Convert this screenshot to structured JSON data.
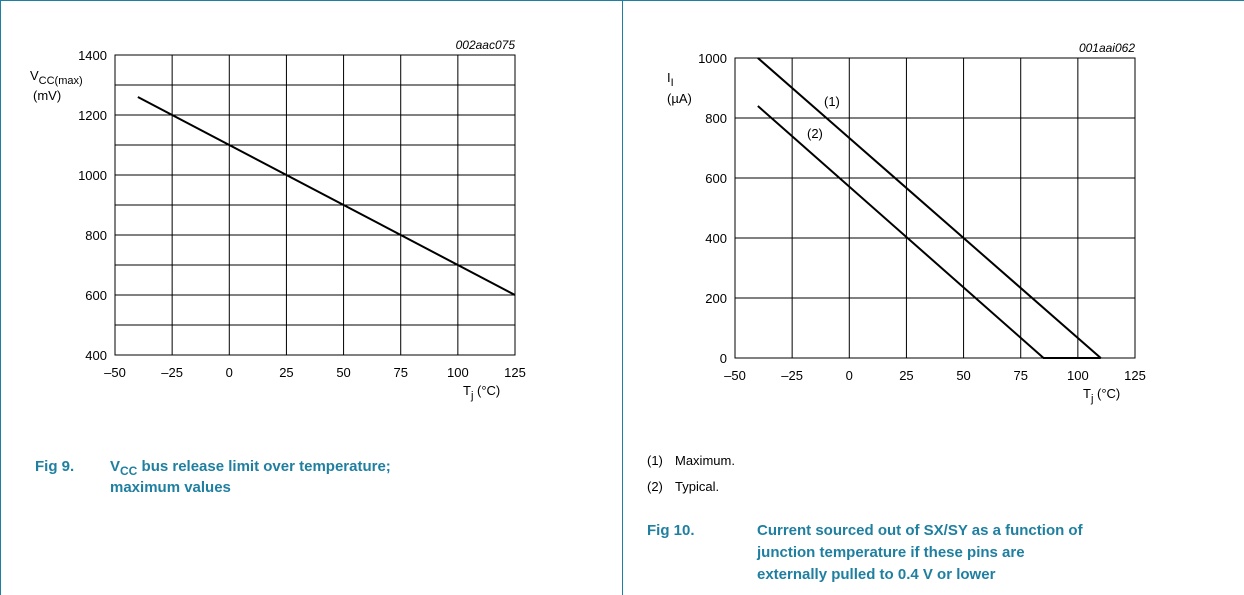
{
  "chart_data": [
    {
      "type": "line",
      "chart_id": "002aac075",
      "y_label": {
        "main": "V",
        "sub": "CC(max)",
        "unit": "(mV)"
      },
      "x_label": {
        "main": "T",
        "sub": "j",
        "unit": " (°C)"
      },
      "xlim": [
        -50,
        125
      ],
      "xticks": [
        {
          "value": -50,
          "label": "–50"
        },
        {
          "value": -25,
          "label": "–25"
        },
        0,
        25,
        50,
        75,
        100,
        125
      ],
      "ylim": [
        400,
        1400
      ],
      "yticks": [
        400,
        600,
        800,
        1000,
        1200,
        1400
      ],
      "yminor": [
        500,
        700,
        900,
        1100,
        1300
      ],
      "grid": true,
      "series": [
        {
          "color": "#000000",
          "x": [
            -40,
            125
          ],
          "values": [
            1260,
            600
          ]
        }
      ],
      "caption": {
        "number": "Fig 9.",
        "line1": [
          "V",
          "CC",
          " bus release limit over temperature;"
        ],
        "line2": "maximum values"
      }
    },
    {
      "type": "line",
      "chart_id": "001aai062",
      "y_label": {
        "main": "I",
        "sub": "I",
        "unit": "(µA)"
      },
      "x_label": {
        "main": "T",
        "sub": "j",
        "unit": " (°C)"
      },
      "xlim": [
        -50,
        125
      ],
      "xticks": [
        {
          "value": -50,
          "label": "–50"
        },
        {
          "value": -25,
          "label": "–25"
        },
        0,
        25,
        50,
        75,
        100,
        125
      ],
      "ylim": [
        0,
        1000
      ],
      "yticks": [
        0,
        200,
        400,
        600,
        800,
        1000
      ],
      "yminor": [],
      "grid": true,
      "series": [
        {
          "name": "(1)",
          "color": "#000000",
          "x": [
            -40,
            110
          ],
          "values": [
            1000,
            0
          ]
        },
        {
          "name": "(2)",
          "color": "#000000",
          "x": [
            -40,
            85,
            110
          ],
          "values": [
            840,
            0,
            0
          ]
        }
      ],
      "notes": [
        {
          "key": "(1)",
          "text": "Maximum."
        },
        {
          "key": "(2)",
          "text": "Typical."
        }
      ],
      "caption": {
        "number": "Fig 10.",
        "lines": [
          "Current sourced out of SX/SY as a function of",
          "junction temperature if these pins are",
          "externally pulled to 0.4 V or lower"
        ]
      }
    }
  ]
}
